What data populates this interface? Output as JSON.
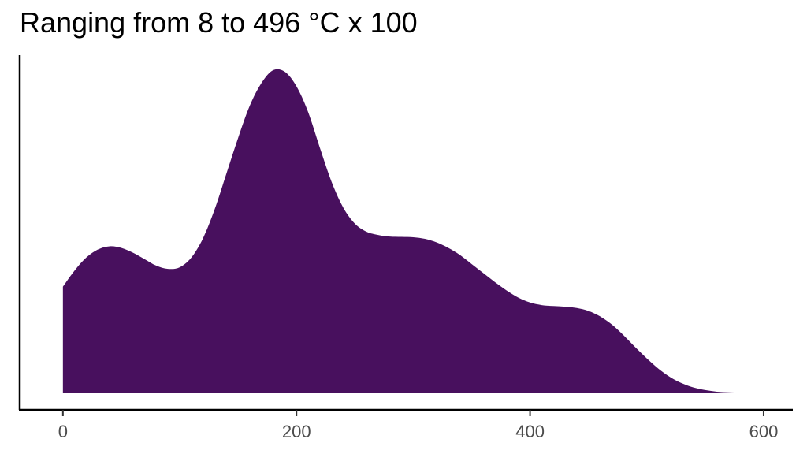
{
  "chart_data": {
    "type": "area",
    "title": "Ranging from 8 to 496 °C x 100",
    "xlabel": "",
    "ylabel": "",
    "xlim": [
      -37,
      625
    ],
    "ylim": [
      0,
      1
    ],
    "x_ticks": [
      0,
      200,
      400,
      600
    ],
    "x_tick_labels": [
      "0",
      "200",
      "400",
      "600"
    ],
    "grid": false,
    "legend": "none",
    "fill_color": "#48105e",
    "series": [
      {
        "x": [
          0,
          10,
          20,
          30,
          40,
          50,
          60,
          70,
          80,
          90,
          100,
          110,
          120,
          130,
          140,
          150,
          160,
          170,
          180,
          190,
          200,
          210,
          220,
          230,
          240,
          250,
          260,
          270,
          280,
          290,
          300,
          310,
          320,
          330,
          340,
          350,
          360,
          370,
          380,
          390,
          400,
          410,
          420,
          430,
          440,
          450,
          460,
          470,
          480,
          490,
          500,
          510,
          520,
          530,
          540,
          550,
          560,
          570,
          580,
          590,
          596
        ],
        "y": [
          0.33,
          0.38,
          0.42,
          0.445,
          0.455,
          0.45,
          0.435,
          0.415,
          0.395,
          0.385,
          0.39,
          0.42,
          0.48,
          0.57,
          0.68,
          0.79,
          0.89,
          0.96,
          1.0,
          0.995,
          0.95,
          0.87,
          0.76,
          0.655,
          0.575,
          0.525,
          0.5,
          0.49,
          0.485,
          0.484,
          0.483,
          0.478,
          0.467,
          0.45,
          0.428,
          0.4,
          0.372,
          0.344,
          0.318,
          0.296,
          0.281,
          0.273,
          0.27,
          0.268,
          0.264,
          0.255,
          0.238,
          0.213,
          0.18,
          0.143,
          0.108,
          0.076,
          0.05,
          0.031,
          0.018,
          0.01,
          0.005,
          0.003,
          0.002,
          0.001,
          0.0
        ]
      }
    ]
  }
}
